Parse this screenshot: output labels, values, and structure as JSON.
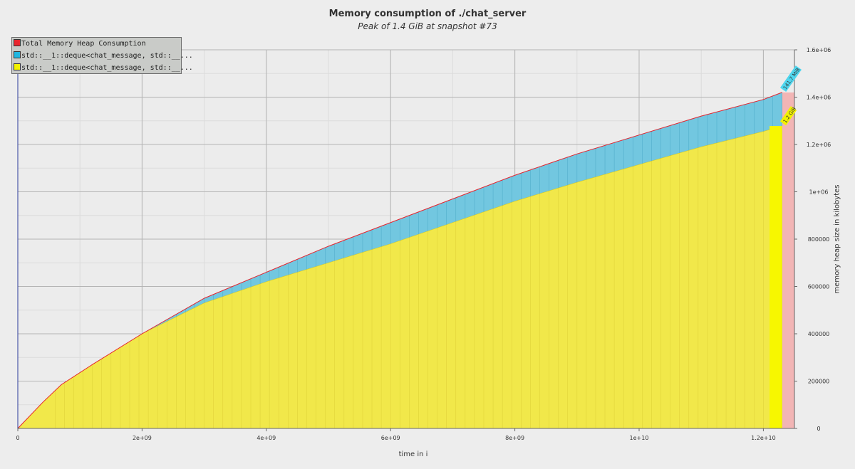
{
  "title": "Memory consumption of ./chat_server",
  "subtitle": "Peak of 1.4 GiB at snapshot #73",
  "legend": [
    {
      "label": "Total Memory Heap Consumption",
      "color": "#e8252e"
    },
    {
      "label": "std::__1::deque<chat_message, std::__...",
      "color": "#21b6e0"
    },
    {
      "label": "std::__1::deque<chat_message, std::__...",
      "color": "#f2f200"
    }
  ],
  "peak_labels": {
    "total": "1.4 GiB",
    "blue": "141.7 MiB",
    "yellow": "1.2 GiB"
  },
  "chart_data": {
    "type": "area",
    "title": "Memory consumption of ./chat_server",
    "subtitle": "Peak of 1.4 GiB at snapshot #73",
    "xlabel": "time in i",
    "ylabel": "memory heap size in kilobytes",
    "xlim": [
      0,
      12500000000
    ],
    "ylim": [
      0,
      1600000
    ],
    "x_ticks": [
      {
        "v": 0,
        "label": "0"
      },
      {
        "v": 2000000000,
        "label": "2e+09"
      },
      {
        "v": 4000000000,
        "label": "4e+09"
      },
      {
        "v": 6000000000,
        "label": "6e+09"
      },
      {
        "v": 8000000000,
        "label": "8e+09"
      },
      {
        "v": 10000000000,
        "label": "1e+10"
      },
      {
        "v": 12000000000,
        "label": "1.2e+10"
      }
    ],
    "y_ticks": [
      {
        "v": 0,
        "label": "0"
      },
      {
        "v": 200000,
        "label": "200000"
      },
      {
        "v": 400000,
        "label": "400000"
      },
      {
        "v": 600000,
        "label": "600000"
      },
      {
        "v": 800000,
        "label": "800000"
      },
      {
        "v": 1000000,
        "label": "1e+06"
      },
      {
        "v": 1200000,
        "label": "1.2e+06"
      },
      {
        "v": 1400000,
        "label": "1.4e+06"
      },
      {
        "v": 1600000,
        "label": "1.6e+06"
      }
    ],
    "grid": true,
    "legend_position": "top-left",
    "peak_x": 12300000000,
    "series": [
      {
        "name": "Total Memory Heap Consumption",
        "color": "#e8252e",
        "x": [
          0,
          400000000,
          700000000,
          1200000000,
          2000000000,
          3000000000,
          4000000000,
          5000000000,
          6000000000,
          7000000000,
          8000000000,
          9000000000,
          10000000000,
          11000000000,
          12000000000,
          12300000000
        ],
        "y": [
          0,
          110000,
          185000,
          270000,
          400000,
          550000,
          660000,
          770000,
          870000,
          970000,
          1070000,
          1160000,
          1240000,
          1320000,
          1390000,
          1420000
        ]
      },
      {
        "name": "std::__1::deque<chat_message, std::__...",
        "color": "#21b6e0",
        "x": [
          0,
          400000000,
          700000000,
          1200000000,
          2000000000,
          3000000000,
          4000000000,
          5000000000,
          6000000000,
          7000000000,
          8000000000,
          9000000000,
          10000000000,
          11000000000,
          12000000000,
          12300000000
        ],
        "y": [
          0,
          0,
          0,
          0,
          0,
          20000,
          40000,
          70000,
          90000,
          100000,
          110000,
          120000,
          125000,
          130000,
          135000,
          141700
        ]
      },
      {
        "name": "std::__1::deque<chat_message, std::__...",
        "color": "#f2f200",
        "x": [
          0,
          400000000,
          700000000,
          1200000000,
          2000000000,
          3000000000,
          4000000000,
          5000000000,
          6000000000,
          7000000000,
          8000000000,
          9000000000,
          10000000000,
          11000000000,
          12000000000,
          12300000000
        ],
        "y": [
          0,
          110000,
          185000,
          270000,
          400000,
          530000,
          620000,
          700000,
          780000,
          870000,
          960000,
          1040000,
          1115000,
          1190000,
          1255000,
          1278000
        ]
      }
    ]
  }
}
